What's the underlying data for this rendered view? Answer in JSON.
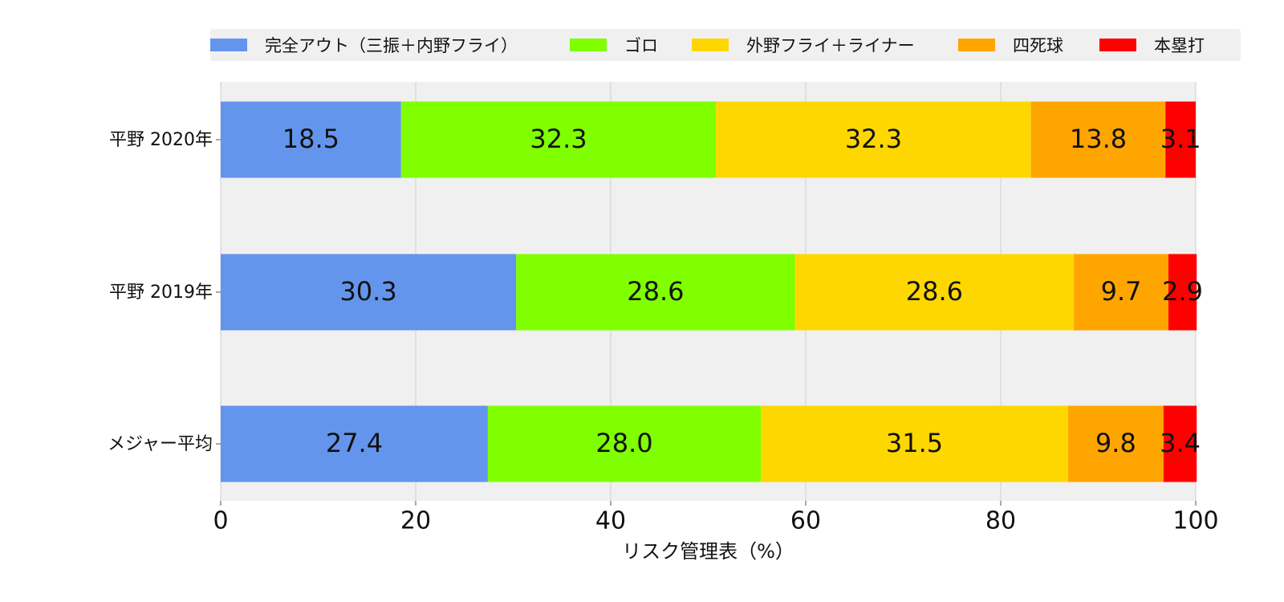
{
  "chart_data": {
    "type": "bar",
    "orientation": "horizontal",
    "stacked": true,
    "categories": [
      "平野 2020年",
      "平野 2019年",
      "メジャー平均"
    ],
    "series": [
      {
        "name": "完全アウト（三振＋内野フライ）",
        "color": "#6495ed",
        "values": [
          18.5,
          30.3,
          27.4
        ],
        "labels": [
          "18.5",
          "30.3",
          "27.4"
        ]
      },
      {
        "name": "ゴロ",
        "color": "#7fff00",
        "values": [
          32.3,
          28.6,
          28.0
        ],
        "labels": [
          "32.3",
          "28.6",
          "28.0"
        ]
      },
      {
        "name": "外野フライ＋ライナー",
        "color": "#ffd700",
        "values": [
          32.3,
          28.6,
          31.5
        ],
        "labels": [
          "32.3",
          "28.6",
          "31.5"
        ]
      },
      {
        "name": "四死球",
        "color": "#ffa500",
        "values": [
          13.8,
          9.7,
          9.8
        ],
        "labels": [
          "13.8",
          "9.7",
          "9.8"
        ]
      },
      {
        "name": "本塁打",
        "color": "#ff0000",
        "values": [
          3.1,
          2.9,
          3.4
        ],
        "labels": [
          "3.1",
          "2.9",
          "3.4"
        ]
      }
    ],
    "xlabel": "リスク管理表（%）",
    "ylabel": "",
    "title": "",
    "xlim": [
      0,
      100
    ],
    "xticks": [
      "0",
      "20",
      "40",
      "60",
      "80",
      "100"
    ],
    "grid": "vertical",
    "legend_position": "top",
    "background": "#f0f0f0"
  }
}
